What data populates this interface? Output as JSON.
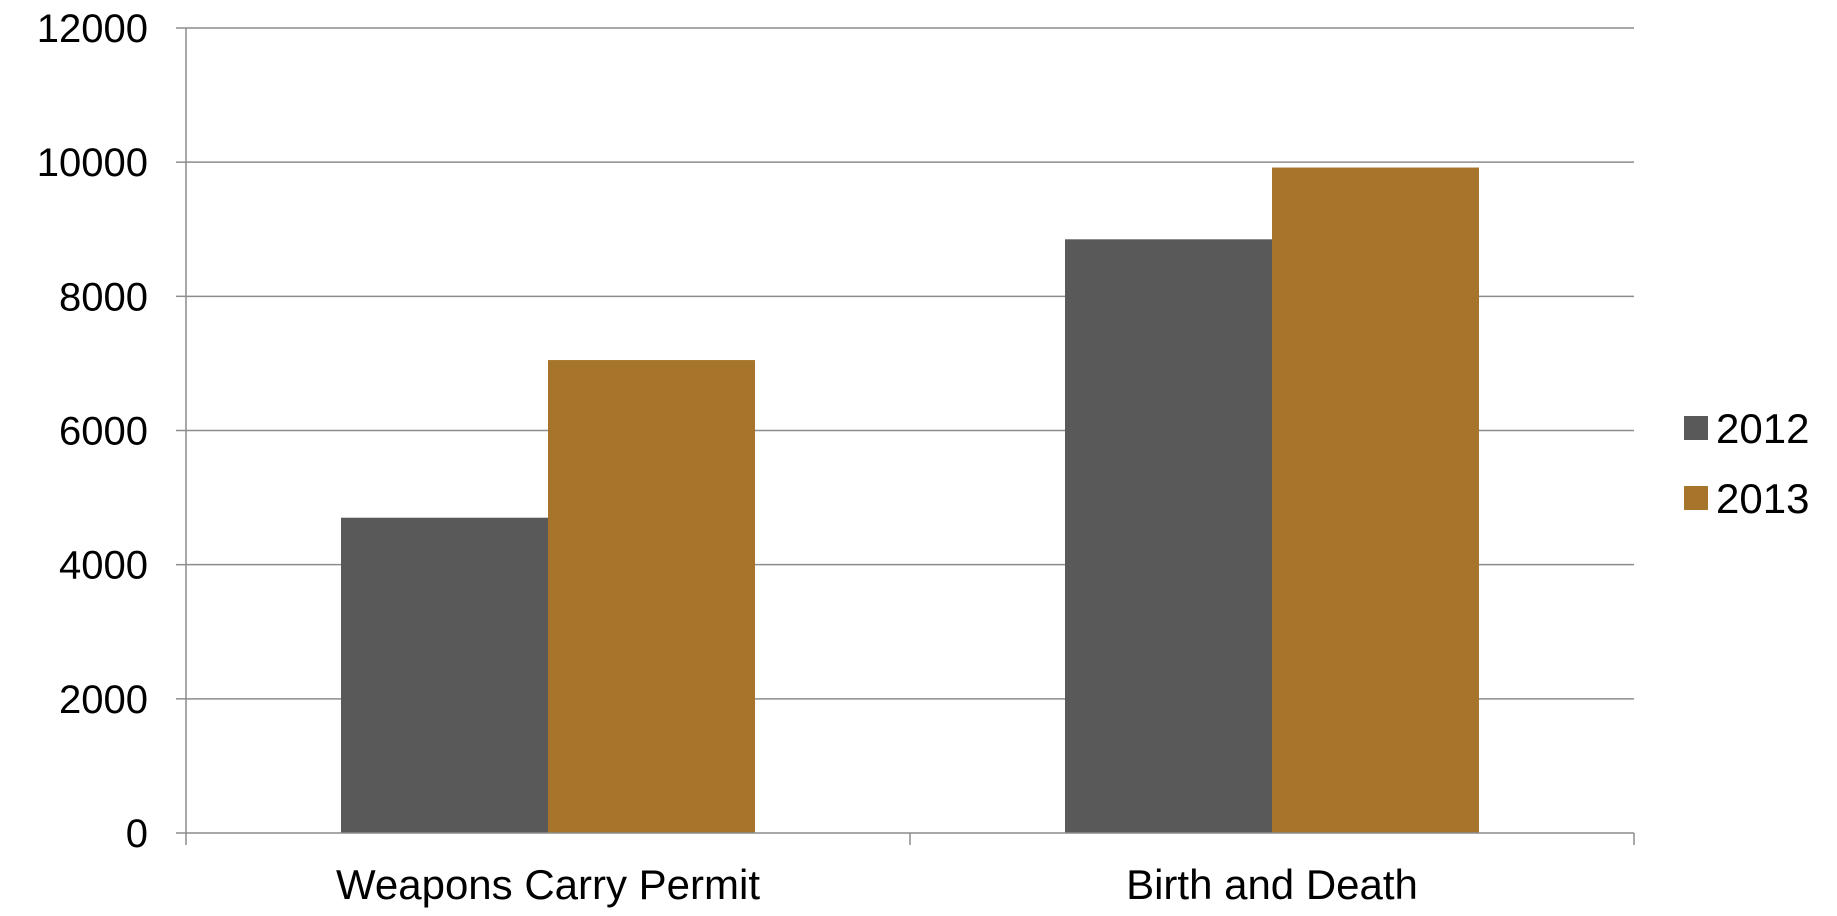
{
  "chart_data": {
    "type": "bar",
    "categories": [
      "Weapons Carry Permit",
      "Birth and Death"
    ],
    "series": [
      {
        "name": "2012",
        "color": "#595959",
        "values": [
          4700,
          8850
        ]
      },
      {
        "name": "2013",
        "color": "#A6742A",
        "values": [
          7050,
          9920
        ]
      }
    ],
    "title": "",
    "xlabel": "",
    "ylabel": "",
    "ylim": [
      0,
      12000
    ],
    "yticks": [
      "0",
      "2000",
      "4000",
      "6000",
      "8000",
      "10000",
      "12000"
    ],
    "grid": true,
    "legend_position": "right"
  }
}
